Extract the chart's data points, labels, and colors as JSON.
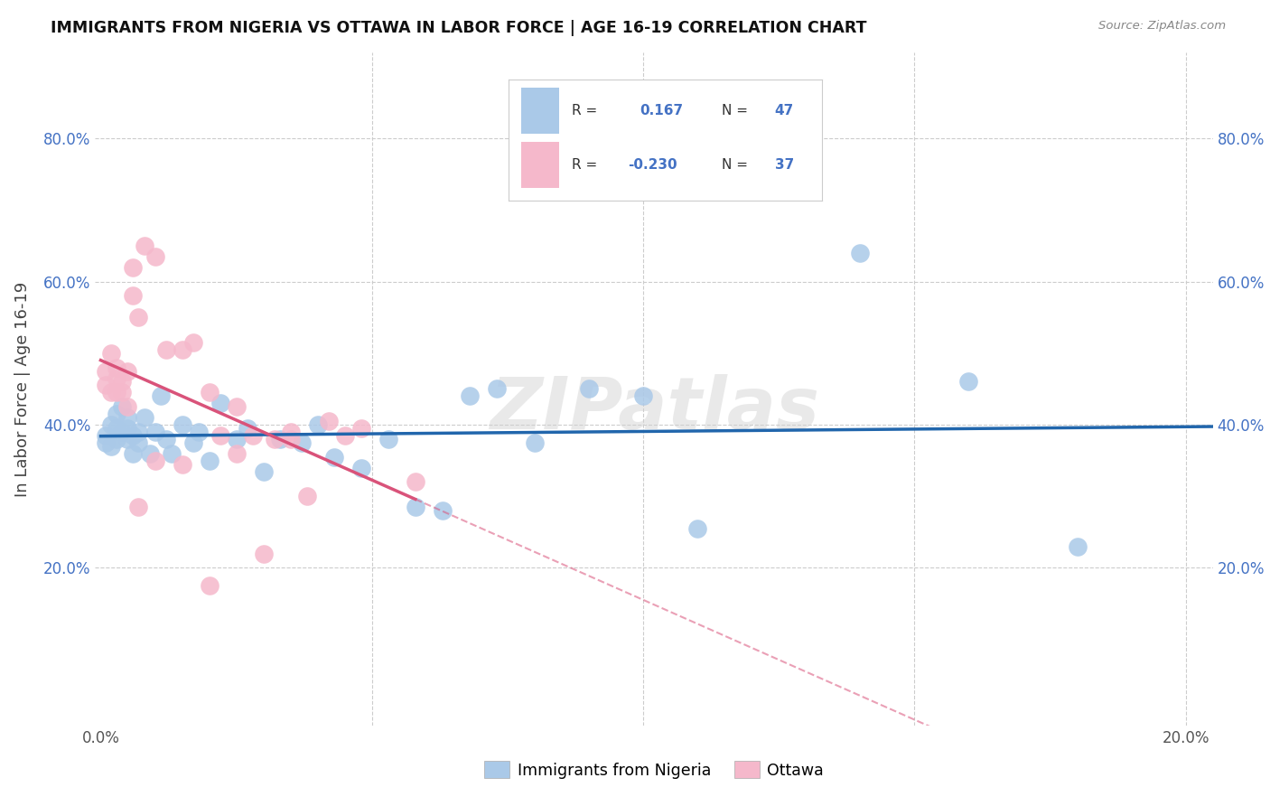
{
  "title": "IMMIGRANTS FROM NIGERIA VS OTTAWA IN LABOR FORCE | AGE 16-19 CORRELATION CHART",
  "source": "Source: ZipAtlas.com",
  "ylabel": "In Labor Force | Age 16-19",
  "xlim": [
    -0.001,
    0.205
  ],
  "ylim": [
    -0.02,
    0.92
  ],
  "ytick_vals": [
    0.0,
    0.2,
    0.4,
    0.6,
    0.8
  ],
  "ytick_labels": [
    "",
    "20.0%",
    "40.0%",
    "60.0%",
    "80.0%"
  ],
  "xtick_vals": [
    0.0,
    0.05,
    0.1,
    0.15,
    0.2
  ],
  "xtick_labels": [
    "0.0%",
    "",
    "",
    "",
    "20.0%"
  ],
  "legend_labels": [
    "Immigrants from Nigeria",
    "Ottawa"
  ],
  "blue_color": "#aac9e8",
  "pink_color": "#f5b8cb",
  "blue_line_color": "#2166ac",
  "pink_line_color": "#d9537a",
  "accent_color": "#4472c4",
  "watermark": "ZIPatlas",
  "blue_x": [
    0.001,
    0.001,
    0.002,
    0.002,
    0.003,
    0.003,
    0.003,
    0.004,
    0.004,
    0.005,
    0.005,
    0.005,
    0.006,
    0.006,
    0.007,
    0.007,
    0.008,
    0.009,
    0.01,
    0.011,
    0.012,
    0.013,
    0.015,
    0.017,
    0.018,
    0.02,
    0.022,
    0.025,
    0.027,
    0.03,
    0.033,
    0.037,
    0.04,
    0.043,
    0.048,
    0.053,
    0.058,
    0.063,
    0.068,
    0.073,
    0.08,
    0.09,
    0.1,
    0.11,
    0.14,
    0.16,
    0.18
  ],
  "blue_y": [
    0.375,
    0.385,
    0.37,
    0.4,
    0.38,
    0.415,
    0.395,
    0.39,
    0.425,
    0.38,
    0.395,
    0.41,
    0.36,
    0.385,
    0.375,
    0.39,
    0.41,
    0.36,
    0.39,
    0.44,
    0.38,
    0.36,
    0.4,
    0.375,
    0.39,
    0.35,
    0.43,
    0.38,
    0.395,
    0.335,
    0.38,
    0.375,
    0.4,
    0.355,
    0.34,
    0.38,
    0.285,
    0.28,
    0.44,
    0.45,
    0.375,
    0.45,
    0.44,
    0.255,
    0.64,
    0.46,
    0.23
  ],
  "pink_x": [
    0.001,
    0.001,
    0.002,
    0.002,
    0.003,
    0.003,
    0.003,
    0.004,
    0.004,
    0.005,
    0.005,
    0.006,
    0.006,
    0.007,
    0.008,
    0.01,
    0.012,
    0.015,
    0.017,
    0.02,
    0.022,
    0.025,
    0.028,
    0.032,
    0.035,
    0.038,
    0.042,
    0.048,
    0.058,
    0.03,
    0.02,
    0.015,
    0.01,
    0.007,
    0.045,
    0.035,
    0.025
  ],
  "pink_y": [
    0.455,
    0.475,
    0.5,
    0.445,
    0.465,
    0.48,
    0.445,
    0.445,
    0.46,
    0.425,
    0.475,
    0.58,
    0.62,
    0.55,
    0.65,
    0.635,
    0.505,
    0.505,
    0.515,
    0.445,
    0.385,
    0.425,
    0.385,
    0.38,
    0.38,
    0.3,
    0.405,
    0.395,
    0.32,
    0.22,
    0.175,
    0.345,
    0.35,
    0.285,
    0.385,
    0.39,
    0.36
  ]
}
